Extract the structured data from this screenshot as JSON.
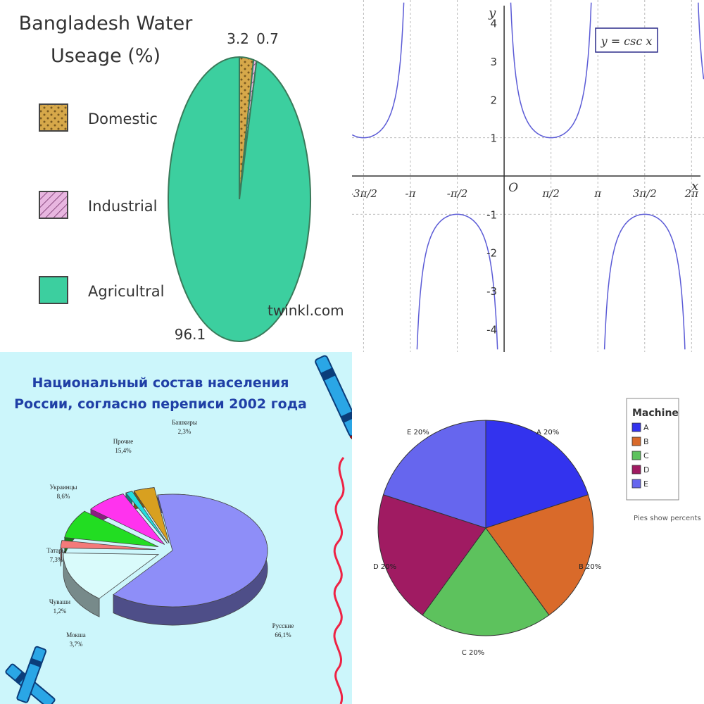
{
  "chart_data": [
    {
      "type": "pie",
      "title": "Bangladesh Water Useage (%)",
      "categories": [
        "Domestic",
        "Industrial",
        "Agricultral"
      ],
      "values": [
        3.2,
        0.7,
        96.1
      ],
      "value_labels": [
        "3.2",
        "0.7",
        "96.1"
      ],
      "colors": [
        "#d6a84a",
        "#e0a6d4",
        "#3ccf9f"
      ],
      "legend": "left",
      "watermark": "twinkl.com"
    },
    {
      "type": "line",
      "annotation": "y = csc x",
      "xlabel": "x",
      "ylabel": "y",
      "xlim": [
        -5.1,
        6.7
      ],
      "ylim": [
        -4.6,
        4.6
      ],
      "x_tick_values": [
        -4.712,
        -3.1416,
        -1.5708,
        1.5708,
        3.1416,
        4.712,
        6.2832
      ],
      "x_tick_labels": [
        "-3π/2",
        "-π",
        "-π/2",
        "π/2",
        "π",
        "3π/2",
        "2π"
      ],
      "y_tick_values": [
        -4,
        -3,
        -2,
        -1,
        1,
        2,
        3,
        4
      ],
      "y_tick_labels": [
        "-4",
        "-3",
        "-2",
        "-1",
        "1",
        "2",
        "3",
        "4"
      ],
      "origin_label": "O",
      "grid": true,
      "curve_color": "#5b5bd6"
    },
    {
      "type": "pie",
      "title": "Национальный состав населения России, согласно переписи 2002 года",
      "title_line1": "Национальный состав населения",
      "title_line2": "России, согласно переписи 2002 года",
      "categories": [
        "Русские",
        "Прочие",
        "Башкиры",
        "Украинцы",
        "Татары",
        "Чуваши",
        "Мокша"
      ],
      "values": [
        66.1,
        15.4,
        2.3,
        8.6,
        7.3,
        1.2,
        3.7
      ],
      "value_labels": [
        "66,1%",
        "15,4%",
        "2,3%",
        "8,6%",
        "7,3%",
        "1,2%",
        "3,7%"
      ],
      "colors": [
        "#8e8ef8",
        "#d9fbfb",
        "#f47a7a",
        "#22dd22",
        "#ff33ee",
        "#22dddd",
        "#d8a020"
      ]
    },
    {
      "type": "pie",
      "categories": [
        "A",
        "B",
        "C",
        "D",
        "E"
      ],
      "values": [
        20,
        20,
        20,
        20,
        20
      ],
      "slice_labels": [
        "A 20%",
        "B 20%",
        "C 20%",
        "D 20%",
        "E 20%"
      ],
      "legend_title": "Machine",
      "legend": "top-right",
      "colors": [
        "#3333ee",
        "#d96a2a",
        "#5dc25d",
        "#a01b62",
        "#6666ee"
      ],
      "note": "Pies show percents"
    }
  ]
}
